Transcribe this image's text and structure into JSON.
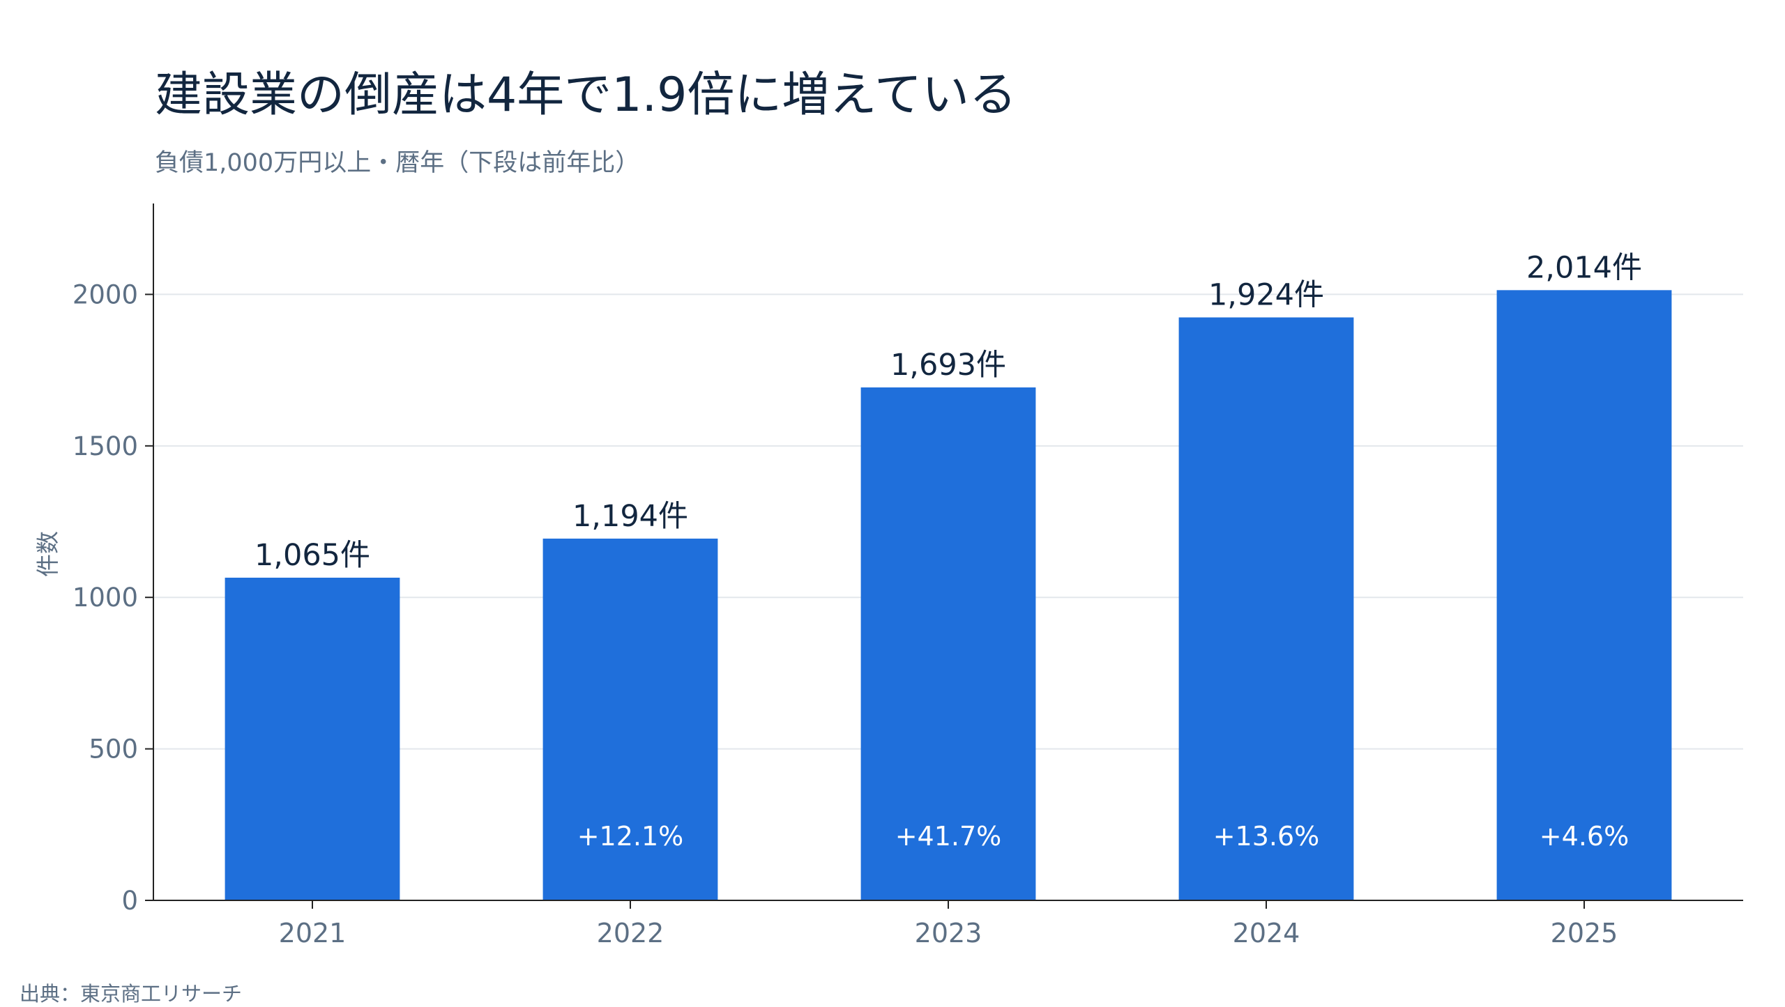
{
  "title": "建設業の倒産は4年で1.9倍に増えている",
  "subtitle": "負債1,000万円以上・暦年（下段は前年比）",
  "source": "出典：東京商工リサーチ",
  "colors": {
    "bar": "#1f6fdb",
    "text_dark": "#12263f",
    "text_muted": "#5c6f84",
    "grid": "#e3e7ec",
    "axis": "#222222"
  },
  "chart_data": {
    "type": "bar",
    "categories": [
      "2021",
      "2022",
      "2023",
      "2024",
      "2025"
    ],
    "values": [
      1065,
      1194,
      1693,
      1924,
      2014
    ],
    "value_labels": [
      "1,065件",
      "1,194件",
      "1,693件",
      "1,924件",
      "2,014件"
    ],
    "change_labels": [
      "",
      "+12.1%",
      "+41.7%",
      "+13.6%",
      "+4.6%"
    ],
    "ylabel": "件数",
    "xlabel": "",
    "ylim": [
      0,
      2300
    ],
    "yticks": [
      0,
      500,
      1000,
      1500,
      2000
    ],
    "grid": true,
    "legend": "none"
  }
}
